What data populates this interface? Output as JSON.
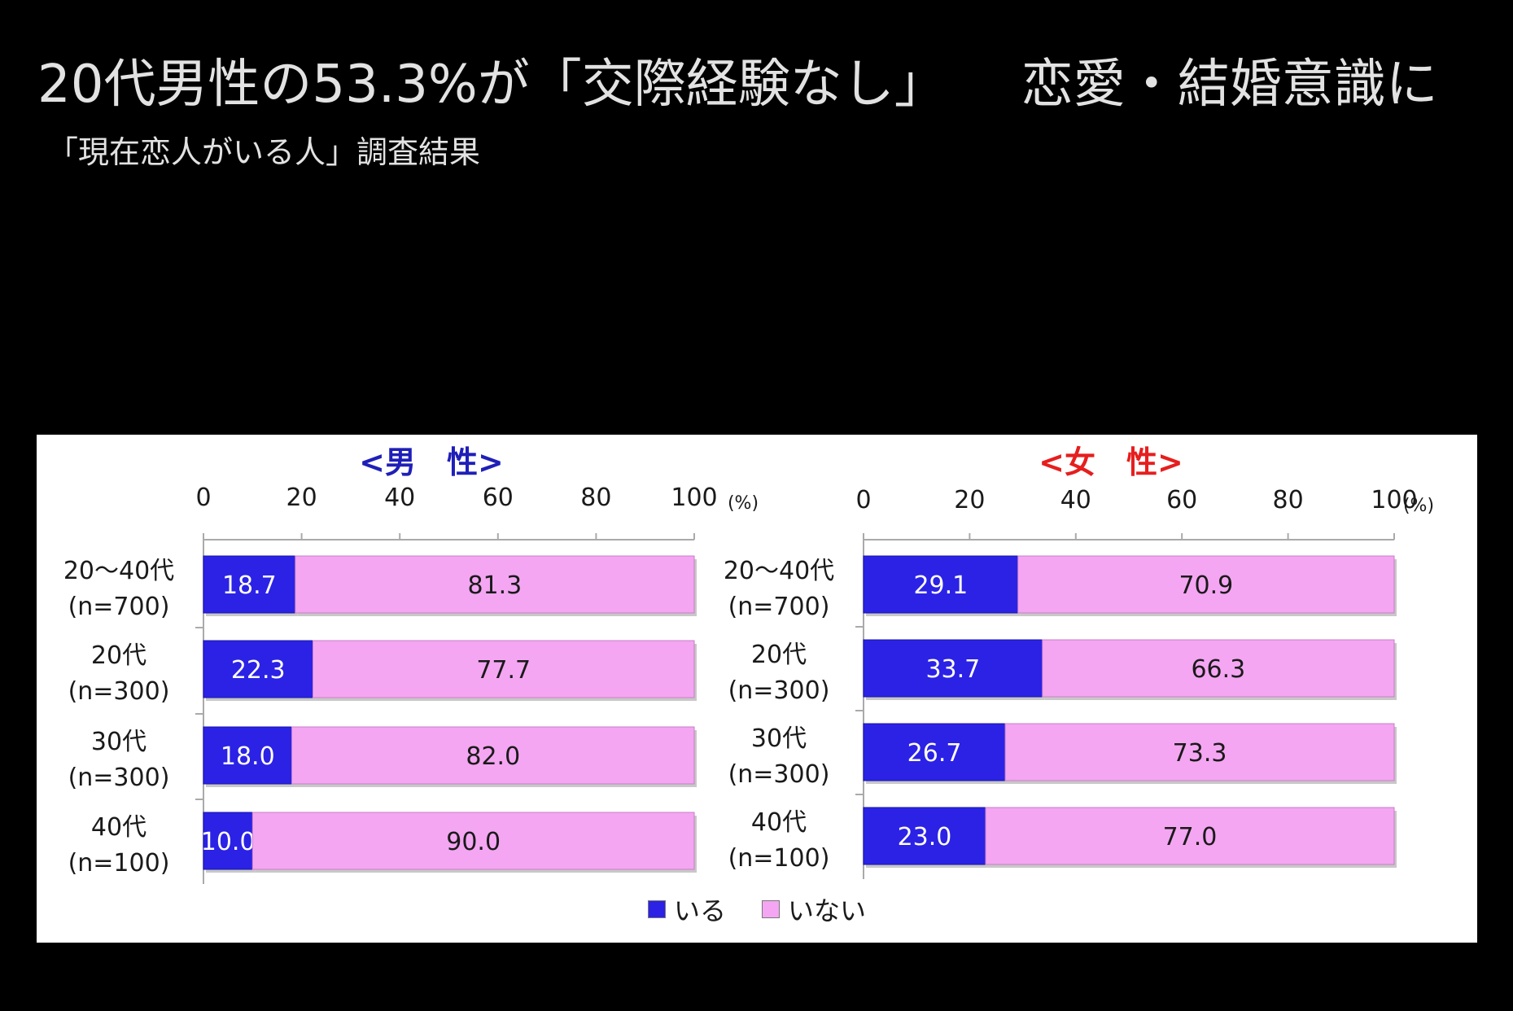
{
  "page": {
    "headline_main": "20代男性の53.3%が「交際経験なし」",
    "headline_tail": "恋愛・結婚意識に",
    "subtitle": "「現在恋人がいる人」調査結果"
  },
  "colors": {
    "background": "#000000",
    "headline_text": "#e2e2e2",
    "yes": "#2b22e6",
    "no": "#f4a6f2",
    "male_title": "#1f1fb8",
    "female_title": "#e61e1e"
  },
  "legend": {
    "yes_label": "いる",
    "no_label": "いない"
  },
  "chart_data": [
    {
      "type": "bar",
      "orientation": "horizontal",
      "stacked": true,
      "title": "<男　性>",
      "unit_label": "(%)",
      "xlim": [
        0,
        100
      ],
      "x_ticks": [
        "0",
        "20",
        "40",
        "60",
        "80",
        "100"
      ],
      "categories": [
        {
          "line1": "20〜40代",
          "line2": "(n=700)"
        },
        {
          "line1": "20代",
          "line2": "(n=300)"
        },
        {
          "line1": "30代",
          "line2": "(n=300)"
        },
        {
          "line1": "40代",
          "line2": "(n=100)"
        }
      ],
      "series": [
        {
          "name": "いる",
          "values": [
            18.7,
            22.3,
            18.0,
            10.0
          ],
          "labels": [
            "18.7",
            "22.3",
            "18.0",
            "10.0"
          ]
        },
        {
          "name": "いない",
          "values": [
            81.3,
            77.7,
            82.0,
            90.0
          ],
          "labels": [
            "81.3",
            "77.7",
            "82.0",
            "90.0"
          ]
        }
      ],
      "grid": false
    },
    {
      "type": "bar",
      "orientation": "horizontal",
      "stacked": true,
      "title": "<女　性>",
      "unit_label": "(%)",
      "xlim": [
        0,
        100
      ],
      "x_ticks": [
        "0",
        "20",
        "40",
        "60",
        "80",
        "100"
      ],
      "categories": [
        {
          "line1": "20〜40代",
          "line2": "(n=700)"
        },
        {
          "line1": "20代",
          "line2": "(n=300)"
        },
        {
          "line1": "30代",
          "line2": "(n=300)"
        },
        {
          "line1": "40代",
          "line2": "(n=100)"
        }
      ],
      "series": [
        {
          "name": "いる",
          "values": [
            29.1,
            33.7,
            26.7,
            23.0
          ],
          "labels": [
            "29.1",
            "33.7",
            "26.7",
            "23.0"
          ]
        },
        {
          "name": "いない",
          "values": [
            70.9,
            66.3,
            73.3,
            77.0
          ],
          "labels": [
            "70.9",
            "66.3",
            "73.3",
            "77.0"
          ]
        }
      ],
      "grid": false
    }
  ]
}
